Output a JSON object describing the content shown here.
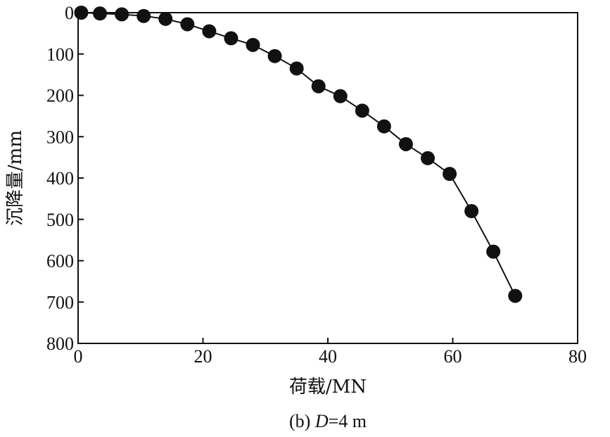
{
  "chart_data": {
    "type": "line",
    "xlabel": "荷载/MN",
    "ylabel": "沉降量/mm",
    "caption": {
      "prefix": "(b) ",
      "variable": "D",
      "suffix": "=4 m"
    },
    "xlim": [
      0,
      80
    ],
    "ylim": [
      0,
      800
    ],
    "y_inverted": true,
    "grid": false,
    "xticks": [
      0,
      20,
      40,
      60,
      80
    ],
    "yticks": [
      0,
      100,
      200,
      300,
      400,
      500,
      600,
      700,
      800
    ],
    "series": [
      {
        "marker": "filled-circle",
        "color": "#111111",
        "x": [
          0.5,
          3.5,
          7.0,
          10.5,
          14.0,
          17.5,
          21.0,
          24.5,
          28.0,
          31.5,
          35.0,
          38.5,
          42.0,
          45.5,
          49.0,
          52.5,
          56.0,
          59.5,
          63.0,
          66.5,
          70.0
        ],
        "y": [
          0,
          2,
          4,
          8,
          15,
          28,
          45,
          62,
          78,
          105,
          135,
          178,
          202,
          237,
          275,
          318,
          352,
          390,
          480,
          578,
          685
        ]
      }
    ]
  }
}
